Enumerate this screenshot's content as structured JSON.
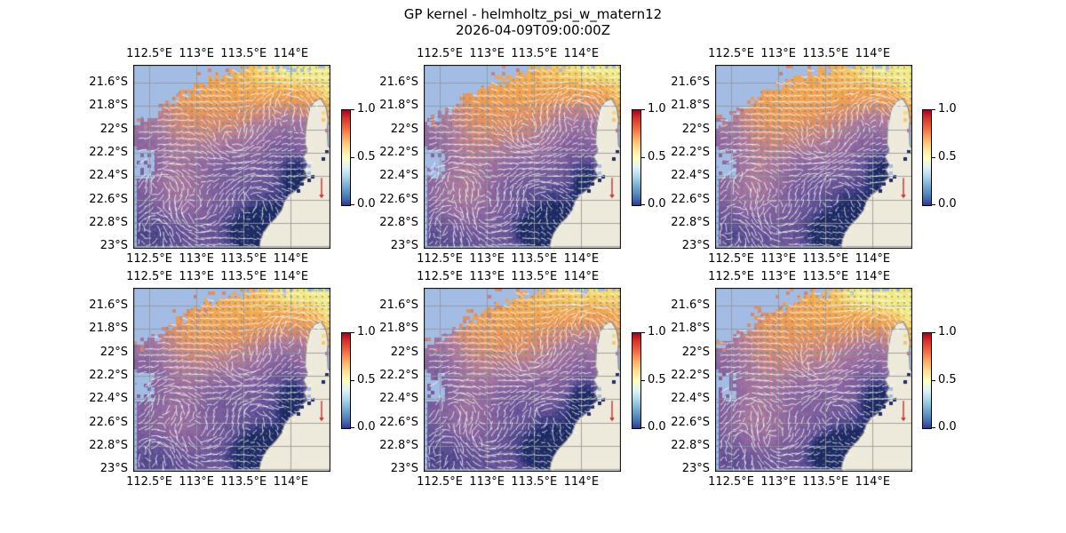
{
  "figure": {
    "background": "#ffffff"
  },
  "chart_data": {
    "type": "heatmap",
    "title": "GP kernel - helmholtz_psi_w_matern12",
    "subtitle": "2026-04-09T09:00:00Z",
    "grid": {
      "rows": 2,
      "cols": 3
    },
    "x_axis": {
      "tick_labels": [
        "112.5°E",
        "113°E",
        "113.5°E",
        "114°E"
      ],
      "tick_values": [
        112.5,
        113.0,
        113.5,
        114.0
      ],
      "range": [
        112.33,
        114.42
      ],
      "labels_top_and_bottom": true
    },
    "y_axis": {
      "tick_labels": [
        "21.6°S",
        "21.8°S",
        "22°S",
        "22.2°S",
        "22.4°S",
        "22.6°S",
        "22.8°S",
        "23°S"
      ],
      "tick_values": [
        21.6,
        21.8,
        22.0,
        22.2,
        22.4,
        22.6,
        22.8,
        23.0
      ],
      "range": [
        21.45,
        23.02
      ]
    },
    "colorbar": {
      "tick_labels": [
        "1.0",
        "0.5",
        "0.0"
      ],
      "tick_values": [
        1.0,
        0.5,
        0.0
      ],
      "range": [
        0,
        1
      ],
      "colormap": "RdYlBu_r",
      "gradient_stops": [
        [
          0,
          "#a50026"
        ],
        [
          0.08,
          "#d73027"
        ],
        [
          0.2,
          "#f46d43"
        ],
        [
          0.3,
          "#fdae61"
        ],
        [
          0.4,
          "#fee090"
        ],
        [
          0.5,
          "#ffffbf"
        ],
        [
          0.6,
          "#e0f3f8"
        ],
        [
          0.7,
          "#abd9e9"
        ],
        [
          0.8,
          "#74add1"
        ],
        [
          0.92,
          "#4575b4"
        ],
        [
          1,
          "#313695"
        ]
      ]
    },
    "heatmap_colormap": [
      [
        0,
        "#1d2a60"
      ],
      [
        0.12,
        "#3b3a80"
      ],
      [
        0.25,
        "#6b5497"
      ],
      [
        0.38,
        "#93689f"
      ],
      [
        0.48,
        "#ad7b9b"
      ],
      [
        0.58,
        "#d18a74"
      ],
      [
        0.68,
        "#ec9a55"
      ],
      [
        0.8,
        "#f4a84e"
      ],
      [
        0.9,
        "#f6c95e"
      ],
      [
        1,
        "#f1ec83"
      ]
    ],
    "colors": {
      "ocean_mask": "#a2bce4",
      "land_fill": "#edeadb",
      "land_stroke": "#8a8a8a",
      "grid_line": "rgba(150,150,150,0.85)",
      "frame": "#000000",
      "quiver_dot": "rgba(79,127,181,0.8)",
      "quiver_streak": "rgba(255,255,255,0.88)",
      "red_arrow": "#c03030"
    },
    "field": {
      "base": 0.52,
      "blobs": [
        [
          0.5,
          0.88,
          -0.05,
          0.22,
          0.16
        ],
        [
          0.25,
          1.02,
          0.28,
          0.06,
          0.18
        ],
        [
          0.18,
          0.45,
          0.1,
          0.35,
          0.12
        ],
        [
          0.12,
          0.25,
          0.35,
          0.25,
          0.2
        ],
        [
          -0.22,
          0.45,
          0.6,
          0.18,
          0.14
        ],
        [
          -0.25,
          0.05,
          0.55,
          0.12,
          0.35
        ],
        [
          -0.28,
          0.25,
          0.95,
          0.3,
          0.18
        ],
        [
          -0.2,
          0.78,
          0.55,
          0.12,
          0.25
        ],
        [
          -0.85,
          0.63,
          0.92,
          0.075,
          0.06
        ],
        [
          -0.45,
          0.7,
          0.85,
          0.12,
          0.1
        ],
        [
          -0.5,
          0.84,
          0.64,
          0.05,
          0.08
        ],
        [
          0.18,
          0.17,
          0.72,
          0.13,
          0.13
        ]
      ]
    },
    "mask": {
      "boundary": [
        [
          0,
          0.32
        ],
        [
          0.12,
          0.26
        ],
        [
          0.22,
          0.18
        ],
        [
          0.32,
          0.12
        ],
        [
          0.42,
          0.07
        ],
        [
          0.52,
          0.03
        ],
        [
          0.62,
          0
        ]
      ],
      "holes": [
        [
          0.005,
          0.47,
          0.105,
          0.615
        ]
      ],
      "bottom_strip": 0.982,
      "left_strip": 0.012,
      "east_strip": [
        0.962,
        0.33,
        1.0,
        0.455
      ]
    },
    "land_polygon": [
      [
        0.952,
        0.185
      ],
      [
        0.922,
        0.196
      ],
      [
        0.895,
        0.235
      ],
      [
        0.882,
        0.3
      ],
      [
        0.874,
        0.36
      ],
      [
        0.872,
        0.43
      ],
      [
        0.884,
        0.468
      ],
      [
        0.862,
        0.502
      ],
      [
        0.884,
        0.542
      ],
      [
        0.866,
        0.572
      ],
      [
        0.886,
        0.608
      ],
      [
        0.856,
        0.634
      ],
      [
        0.838,
        0.672
      ],
      [
        0.796,
        0.704
      ],
      [
        0.768,
        0.74
      ],
      [
        0.752,
        0.79
      ],
      [
        0.724,
        0.83
      ],
      [
        0.686,
        0.872
      ],
      [
        0.658,
        0.916
      ],
      [
        0.644,
        0.958
      ],
      [
        0.639,
        1.0
      ],
      [
        1.0,
        1.0
      ],
      [
        1.0,
        0.455
      ],
      [
        0.988,
        0.44
      ],
      [
        0.984,
        0.345
      ],
      [
        0.988,
        0.3
      ],
      [
        0.979,
        0.235
      ],
      [
        0.966,
        0.208
      ]
    ],
    "extra_blocks": [
      [
        0.39,
        0.025,
        0.6,
        2
      ],
      [
        0.475,
        0.035,
        0.56,
        1
      ],
      [
        0.028,
        0.3,
        0.6,
        2
      ],
      [
        0.052,
        0.345,
        0.55,
        1
      ],
      [
        0.145,
        0.265,
        0.5,
        1
      ],
      [
        0.335,
        0.06,
        0.55,
        1
      ]
    ],
    "row2_cluster": {
      "u": 0.28,
      "v": 0.16,
      "val": 0.6,
      "n": 14,
      "spread": 0.1
    },
    "coast_cells": [
      [
        0.846,
        0.598
      ],
      [
        0.858,
        0.642
      ],
      [
        0.843,
        0.684
      ],
      [
        0.974,
        0.472
      ],
      [
        0.967,
        0.515
      ]
    ],
    "bay_cells_blue": [
      [
        0.888,
        0.553
      ],
      [
        0.9,
        0.583
      ]
    ],
    "bay_cells_navy": [
      [
        0.906,
        0.612
      ],
      [
        0.888,
        0.62
      ]
    ],
    "tip_cells": [
      [
        0.971,
        0.265,
        0.95
      ],
      [
        0.971,
        0.3,
        0.9
      ],
      [
        0.975,
        0.35,
        0.5
      ]
    ],
    "quiver": {
      "vortices": [
        [
          0.16,
          0.63,
          1
        ],
        [
          0.3,
          0.8,
          -1
        ],
        [
          0.1,
          0.87,
          1
        ],
        [
          0.52,
          0.4,
          -1
        ],
        [
          0.78,
          0.22,
          1
        ],
        [
          0.6,
          0.7,
          1
        ]
      ]
    },
    "red_arrow": {
      "u": 0.955,
      "v_from": 0.615,
      "v_to": 0.72
    },
    "subplots": [
      {
        "row": 0,
        "col": 0,
        "variant": 1
      },
      {
        "row": 0,
        "col": 1,
        "variant": 2
      },
      {
        "row": 0,
        "col": 2,
        "variant": 3
      },
      {
        "row": 1,
        "col": 0,
        "variant": 4
      },
      {
        "row": 1,
        "col": 1,
        "variant": 5
      },
      {
        "row": 1,
        "col": 2,
        "variant": 6
      }
    ]
  }
}
